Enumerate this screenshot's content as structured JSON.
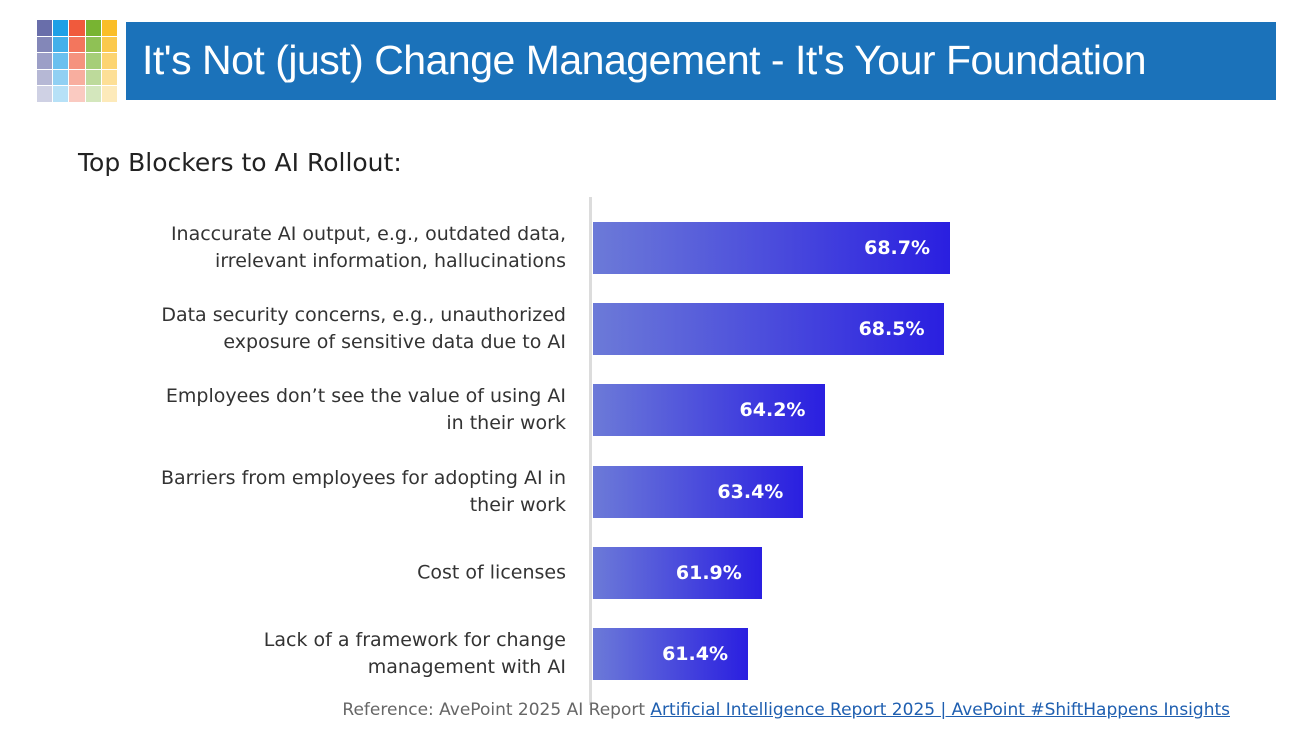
{
  "header": {
    "title": "It's Not (just) Change Management - It's Your Foundation"
  },
  "chart_data": {
    "type": "bar",
    "orientation": "horizontal",
    "title": "Top Blockers to AI Rollout:",
    "categories": [
      "Inaccurate AI output, e.g., outdated data, irrelevant information, hallucinations",
      "Data security concerns, e.g., unauthorized exposure of sensitive data due to AI",
      "Employees don’t see the value of using AI in their work",
      "Barriers from employees for adopting AI in their work",
      "Cost of licenses",
      "Lack of a framework for change management with AI"
    ],
    "values": [
      68.7,
      68.5,
      64.2,
      63.4,
      61.9,
      61.4
    ],
    "value_labels": [
      "68.7%",
      "68.5%",
      "64.2%",
      "63.4%",
      "61.9%",
      "61.4%"
    ],
    "xlim": [
      55.8,
      70
    ],
    "color": [
      "#6c7ad8",
      "#2a1fe0"
    ]
  },
  "footer": {
    "reference": "Reference: AvePoint 2025 AI Report",
    "link": "Artificial Intelligence Report 2025 | AvePoint #ShiftHappens Insights"
  }
}
